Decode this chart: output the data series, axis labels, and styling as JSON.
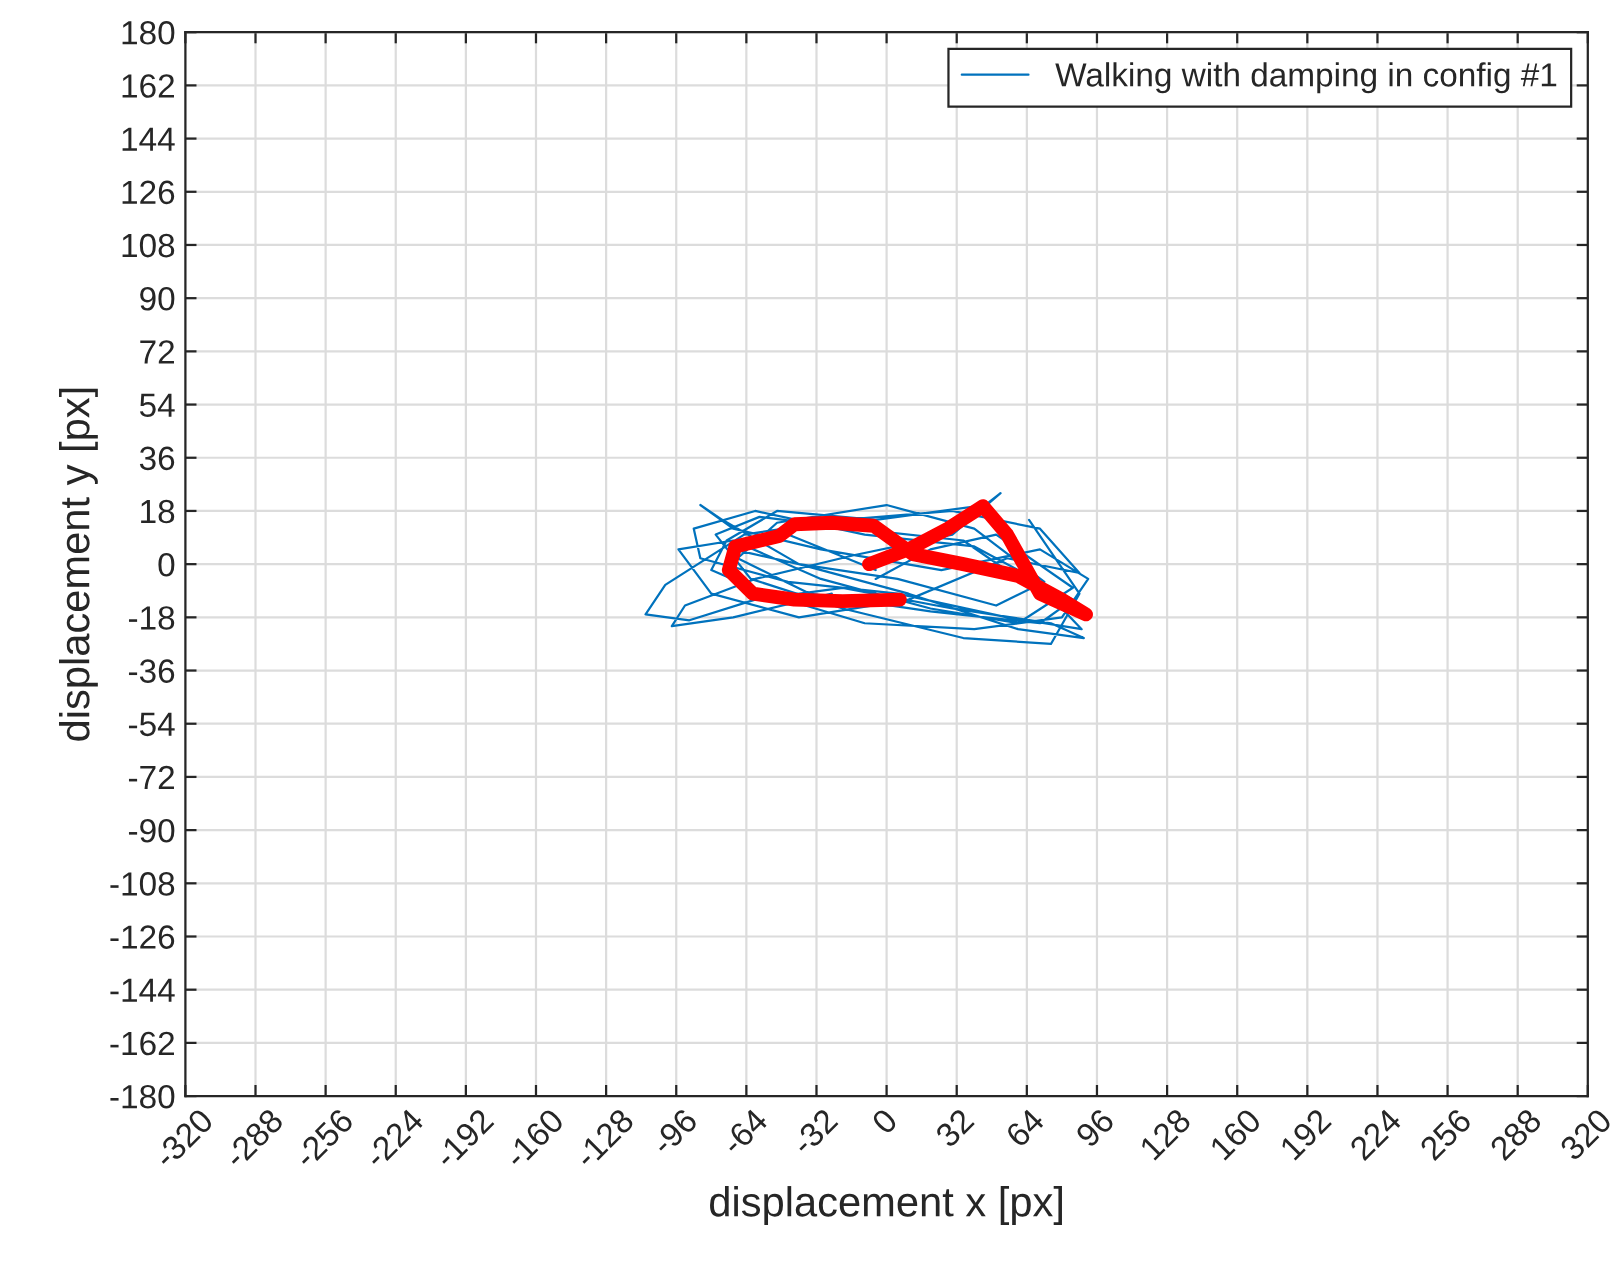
{
  "chart_data": {
    "type": "line",
    "xlabel": "displacement x [px]",
    "ylabel": "displacement y [px]",
    "xlim": [
      -320,
      320
    ],
    "ylim": [
      -180,
      180
    ],
    "xticks": [
      -320,
      -288,
      -256,
      -224,
      -192,
      -160,
      -128,
      -96,
      -64,
      -32,
      0,
      32,
      64,
      96,
      128,
      160,
      192,
      224,
      256,
      288,
      320
    ],
    "yticks": [
      -180,
      -162,
      -144,
      -126,
      -108,
      -90,
      -72,
      -54,
      -36,
      -18,
      0,
      18,
      36,
      54,
      72,
      90,
      108,
      126,
      144,
      162,
      180
    ],
    "grid": true,
    "legend": "top right",
    "series": [
      {
        "name": "Walking with damping in config #1",
        "color": "#0072bd",
        "x": [
          -5,
          20,
          50,
          85,
          60,
          20,
          -30,
          -70,
          -95,
          -80,
          -40,
          10,
          55,
          88,
          70,
          30,
          -20,
          -65,
          -101,
          -110,
          -90,
          -60,
          -20,
          30,
          75,
          90,
          60,
          10,
          -40,
          -75,
          -85,
          -70,
          -30,
          25,
          70,
          92,
          80,
          40,
          -10,
          -55,
          -80,
          -73,
          -50,
          -5,
          45,
          52,
          30,
          -15,
          -60,
          -92,
          -98,
          -70,
          -25,
          20,
          65,
          88,
          75,
          35,
          -20,
          -62,
          -78,
          -58,
          -15,
          35,
          80,
          89,
          55,
          5,
          -45,
          -85,
          -88,
          -60,
          -10,
          40,
          85,
          70,
          20,
          -35,
          -68,
          -50,
          0,
          40,
          72,
          50,
          5,
          -40,
          -70,
          -45,
          -5
        ],
        "values": [
          -5,
          5,
          10,
          -8,
          -20,
          -15,
          -5,
          8,
          5,
          -10,
          -18,
          -12,
          2,
          -3,
          12,
          18,
          15,
          10,
          -7,
          -17,
          -19,
          -12,
          -8,
          -15,
          -20,
          -25,
          -22,
          -10,
          0,
          15,
          20,
          12,
          5,
          -2,
          5,
          -5,
          -18,
          -22,
          -20,
          -10,
          -2,
          8,
          18,
          15,
          20,
          24,
          10,
          3,
          -5,
          -14,
          -21,
          -18,
          -10,
          null,
          15,
          -10,
          -27,
          -25,
          -15,
          -5,
          10,
          16,
          12,
          8,
          -15,
          -22,
          -18,
          -10,
          -6,
          2,
          12,
          18,
          10,
          6,
          -12,
          -20,
          -16,
          -10,
          2,
          14,
          20,
          12,
          -6,
          -14,
          -5,
          0,
          5,
          10,
          -2
        ]
      },
      {
        "color": "#ff0000",
        "x": [
          -8,
          10,
          28,
          44,
          55,
          70,
          91,
          80,
          60,
          35,
          12,
          -6,
          -25,
          -42,
          -49,
          -69,
          -72,
          -61,
          -42,
          -20,
          6
        ],
        "values": [
          0,
          5,
          12,
          19.6,
          10,
          -10,
          -17,
          -12,
          -4,
          0,
          3.4,
          13,
          14,
          13.5,
          9.5,
          6,
          -2,
          -10,
          -12,
          -12.5,
          -12
        ]
      }
    ]
  }
}
